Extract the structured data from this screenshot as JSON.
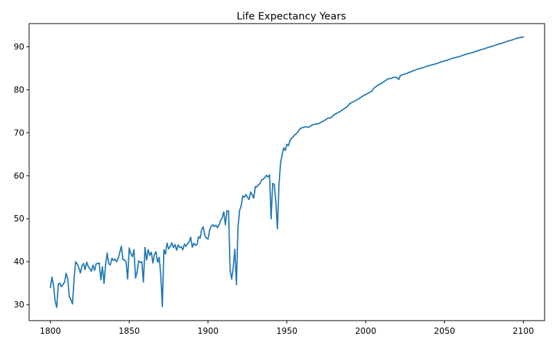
{
  "chart_data": {
    "type": "line",
    "title": "Life Expectancy Years",
    "xlabel": "",
    "ylabel": "",
    "xlim": [
      1786.5,
      2113.5
    ],
    "ylim": [
      26.3,
      95.4
    ],
    "x_ticks": [
      1800,
      1850,
      1900,
      1950,
      2000,
      2050,
      2100
    ],
    "y_ticks": [
      30,
      40,
      50,
      60,
      70,
      80,
      90
    ],
    "grid": false,
    "legend": "none",
    "series": [
      {
        "color": "#1f77b4",
        "points": [
          [
            1800,
            34.0
          ],
          [
            1801,
            36.4
          ],
          [
            1802,
            34.5
          ],
          [
            1803,
            30.8
          ],
          [
            1804,
            29.4
          ],
          [
            1805,
            34.8
          ],
          [
            1806,
            35.0
          ],
          [
            1807,
            34.2
          ],
          [
            1808,
            34.7
          ],
          [
            1809,
            35.3
          ],
          [
            1810,
            37.3
          ],
          [
            1811,
            36.0
          ],
          [
            1812,
            31.8
          ],
          [
            1813,
            31.2
          ],
          [
            1814,
            30.2
          ],
          [
            1815,
            36.0
          ],
          [
            1816,
            40.0
          ],
          [
            1817,
            39.5
          ],
          [
            1818,
            38.6
          ],
          [
            1819,
            37.4
          ],
          [
            1820,
            39.0
          ],
          [
            1821,
            39.6
          ],
          [
            1822,
            38.2
          ],
          [
            1823,
            39.9
          ],
          [
            1824,
            38.9
          ],
          [
            1825,
            38.4
          ],
          [
            1826,
            37.8
          ],
          [
            1827,
            39.2
          ],
          [
            1828,
            38.0
          ],
          [
            1829,
            39.5
          ],
          [
            1830,
            39.6
          ],
          [
            1831,
            39.7
          ],
          [
            1832,
            35.8
          ],
          [
            1833,
            38.8
          ],
          [
            1834,
            35.0
          ],
          [
            1835,
            39.4
          ],
          [
            1836,
            42.0
          ],
          [
            1837,
            39.5
          ],
          [
            1838,
            39.3
          ],
          [
            1839,
            40.8
          ],
          [
            1840,
            40.3
          ],
          [
            1841,
            40.6
          ],
          [
            1842,
            40.0
          ],
          [
            1843,
            40.8
          ],
          [
            1844,
            42.2
          ],
          [
            1845,
            43.6
          ],
          [
            1846,
            40.5
          ],
          [
            1847,
            40.4
          ],
          [
            1848,
            40.0
          ],
          [
            1849,
            36.0
          ],
          [
            1850,
            43.2
          ],
          [
            1851,
            41.9
          ],
          [
            1852,
            41.2
          ],
          [
            1853,
            42.8
          ],
          [
            1854,
            36.2
          ],
          [
            1855,
            37.6
          ],
          [
            1856,
            40.2
          ],
          [
            1857,
            39.8
          ],
          [
            1858,
            40.0
          ],
          [
            1859,
            35.3
          ],
          [
            1860,
            43.3
          ],
          [
            1861,
            40.4
          ],
          [
            1862,
            42.8
          ],
          [
            1863,
            41.5
          ],
          [
            1864,
            42.2
          ],
          [
            1865,
            39.7
          ],
          [
            1866,
            41.8
          ],
          [
            1867,
            42.3
          ],
          [
            1868,
            39.9
          ],
          [
            1869,
            41.0
          ],
          [
            1870,
            37.0
          ],
          [
            1871,
            29.6
          ],
          [
            1872,
            42.8
          ],
          [
            1873,
            41.8
          ],
          [
            1874,
            44.3
          ],
          [
            1875,
            43.0
          ],
          [
            1876,
            43.5
          ],
          [
            1877,
            44.4
          ],
          [
            1878,
            43.3
          ],
          [
            1879,
            44.0
          ],
          [
            1880,
            42.7
          ],
          [
            1881,
            43.9
          ],
          [
            1882,
            43.3
          ],
          [
            1883,
            43.5
          ],
          [
            1884,
            42.8
          ],
          [
            1885,
            44.1
          ],
          [
            1886,
            43.6
          ],
          [
            1887,
            44.2
          ],
          [
            1888,
            44.6
          ],
          [
            1889,
            45.7
          ],
          [
            1890,
            43.4
          ],
          [
            1891,
            44.3
          ],
          [
            1892,
            43.8
          ],
          [
            1893,
            44.0
          ],
          [
            1894,
            45.8
          ],
          [
            1895,
            45.5
          ],
          [
            1896,
            47.6
          ],
          [
            1897,
            48.1
          ],
          [
            1898,
            46.0
          ],
          [
            1899,
            45.5
          ],
          [
            1900,
            45.3
          ],
          [
            1901,
            47.4
          ],
          [
            1902,
            48.2
          ],
          [
            1903,
            48.6
          ],
          [
            1904,
            48.2
          ],
          [
            1905,
            48.5
          ],
          [
            1906,
            47.9
          ],
          [
            1907,
            48.6
          ],
          [
            1908,
            49.6
          ],
          [
            1909,
            50.2
          ],
          [
            1910,
            51.6
          ],
          [
            1911,
            48.6
          ],
          [
            1912,
            51.9
          ],
          [
            1913,
            51.8
          ],
          [
            1914,
            38.0
          ],
          [
            1915,
            36.0
          ],
          [
            1916,
            38.8
          ],
          [
            1917,
            42.9
          ],
          [
            1918,
            34.7
          ],
          [
            1919,
            48.0
          ],
          [
            1920,
            51.9
          ],
          [
            1921,
            53.0
          ],
          [
            1922,
            55.3
          ],
          [
            1923,
            55.0
          ],
          [
            1924,
            55.6
          ],
          [
            1925,
            55.0
          ],
          [
            1926,
            54.5
          ],
          [
            1927,
            56.2
          ],
          [
            1928,
            55.6
          ],
          [
            1929,
            54.8
          ],
          [
            1930,
            57.5
          ],
          [
            1931,
            57.4
          ],
          [
            1932,
            57.9
          ],
          [
            1933,
            58.2
          ],
          [
            1934,
            59.1
          ],
          [
            1935,
            59.2
          ],
          [
            1936,
            59.6
          ],
          [
            1937,
            60.1
          ],
          [
            1938,
            59.7
          ],
          [
            1939,
            60.2
          ],
          [
            1940,
            50.0
          ],
          [
            1941,
            58.2
          ],
          [
            1942,
            58.0
          ],
          [
            1943,
            53.9
          ],
          [
            1944,
            47.7
          ],
          [
            1945,
            58.0
          ],
          [
            1946,
            63.0
          ],
          [
            1947,
            64.9
          ],
          [
            1948,
            66.5
          ],
          [
            1949,
            65.9
          ],
          [
            1950,
            67.3
          ],
          [
            1951,
            67.0
          ],
          [
            1952,
            68.2
          ],
          [
            1953,
            68.7
          ],
          [
            1954,
            69.1
          ],
          [
            1955,
            69.5
          ],
          [
            1956,
            69.8
          ],
          [
            1957,
            70.2
          ],
          [
            1958,
            70.8
          ],
          [
            1959,
            71.1
          ],
          [
            1960,
            71.2
          ],
          [
            1962,
            71.4
          ],
          [
            1964,
            71.3
          ],
          [
            1966,
            71.8
          ],
          [
            1968,
            72.0
          ],
          [
            1970,
            72.1
          ],
          [
            1972,
            72.5
          ],
          [
            1974,
            72.9
          ],
          [
            1976,
            73.4
          ],
          [
            1978,
            73.5
          ],
          [
            1980,
            74.2
          ],
          [
            1982,
            74.6
          ],
          [
            1984,
            75.0
          ],
          [
            1986,
            75.5
          ],
          [
            1988,
            76.0
          ],
          [
            1990,
            76.8
          ],
          [
            1992,
            77.2
          ],
          [
            1994,
            77.6
          ],
          [
            1996,
            78.0
          ],
          [
            1998,
            78.5
          ],
          [
            2000,
            78.9
          ],
          [
            2002,
            79.3
          ],
          [
            2004,
            79.7
          ],
          [
            2005,
            80.3
          ],
          [
            2006,
            80.6
          ],
          [
            2008,
            81.1
          ],
          [
            2010,
            81.5
          ],
          [
            2012,
            82.0
          ],
          [
            2014,
            82.5
          ],
          [
            2015,
            82.6
          ],
          [
            2016,
            82.6
          ],
          [
            2017,
            82.8
          ],
          [
            2018,
            82.9
          ],
          [
            2019,
            82.9
          ],
          [
            2020,
            82.8
          ],
          [
            2021,
            82.4
          ],
          [
            2022,
            83.3
          ],
          [
            2024,
            83.6
          ],
          [
            2026,
            83.8
          ],
          [
            2028,
            84.1
          ],
          [
            2030,
            84.4
          ],
          [
            2033,
            84.8
          ],
          [
            2036,
            85.1
          ],
          [
            2039,
            85.5
          ],
          [
            2042,
            85.8
          ],
          [
            2045,
            86.1
          ],
          [
            2048,
            86.5
          ],
          [
            2051,
            86.8
          ],
          [
            2054,
            87.2
          ],
          [
            2057,
            87.5
          ],
          [
            2060,
            87.8
          ],
          [
            2063,
            88.2
          ],
          [
            2066,
            88.5
          ],
          [
            2069,
            88.8
          ],
          [
            2072,
            89.2
          ],
          [
            2075,
            89.5
          ],
          [
            2078,
            89.9
          ],
          [
            2081,
            90.2
          ],
          [
            2084,
            90.6
          ],
          [
            2087,
            90.9
          ],
          [
            2090,
            91.3
          ],
          [
            2093,
            91.6
          ],
          [
            2096,
            92.0
          ],
          [
            2100,
            92.3
          ]
        ]
      }
    ]
  }
}
